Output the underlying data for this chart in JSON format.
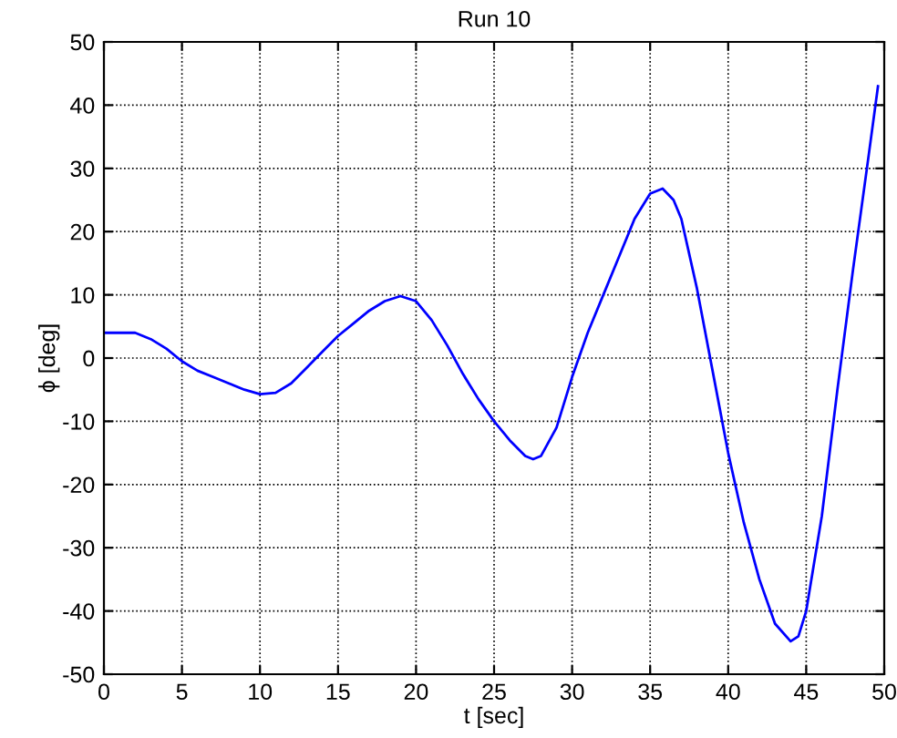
{
  "chart_data": {
    "type": "line",
    "title": "Run 10",
    "xlabel": "t [sec]",
    "ylabel": "ϕ [deg]",
    "x": [
      0,
      2,
      3,
      4,
      5,
      6,
      7,
      8,
      9,
      10,
      11,
      12,
      13,
      14,
      15,
      16,
      17,
      18,
      19,
      20,
      21,
      22,
      23,
      24,
      25,
      26,
      27,
      27.5,
      28,
      29,
      30,
      31,
      32,
      33,
      34,
      35,
      35.8,
      36.5,
      37,
      38,
      39,
      40,
      41,
      42,
      43,
      44,
      44.5,
      45,
      46,
      47,
      48,
      49,
      49.6
    ],
    "series": [
      {
        "color": "#0000ff",
        "values": [
          4,
          4,
          3,
          1.5,
          -0.5,
          -2,
          -3,
          -4,
          -5,
          -5.7,
          -5.5,
          -4,
          -1.5,
          1,
          3.5,
          5.5,
          7.5,
          9,
          9.8,
          9,
          6,
          2,
          -2.5,
          -6.5,
          -10,
          -13,
          -15.5,
          -16,
          -15.5,
          -11,
          -3,
          4,
          10,
          16,
          22,
          26,
          26.8,
          25,
          22,
          11,
          -2,
          -15,
          -26,
          -35,
          -42,
          -44.8,
          -44,
          -40,
          -25,
          -5,
          14,
          32,
          43
        ]
      }
    ],
    "xlim": [
      0,
      50
    ],
    "ylim": [
      -50,
      50
    ],
    "xticks": [
      0,
      5,
      10,
      15,
      20,
      25,
      30,
      35,
      40,
      45,
      50
    ],
    "yticks": [
      -50,
      -40,
      -30,
      -20,
      -10,
      0,
      10,
      20,
      30,
      40,
      50
    ],
    "grid": true,
    "line_style": "solid",
    "marker": "none",
    "legend": false
  }
}
